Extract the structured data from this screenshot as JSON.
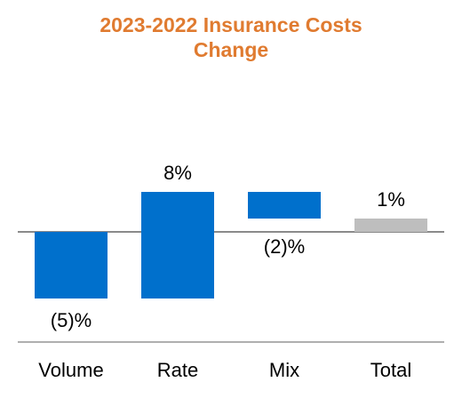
{
  "chart_data": {
    "type": "waterfall",
    "title_lines": [
      "2023-2022 Insurance Costs",
      "Change"
    ],
    "categories": [
      "Volume",
      "Rate",
      "Mix",
      "Total"
    ],
    "values": [
      -5,
      8,
      -2,
      1
    ],
    "data_labels": [
      "(5)%",
      "8%",
      "(2)%",
      "1%"
    ],
    "unit": "%",
    "colors": {
      "bar": "#0070CC",
      "total": "#BEBEBE",
      "title": "#E07B30",
      "axis": "#8A8A8A"
    }
  }
}
